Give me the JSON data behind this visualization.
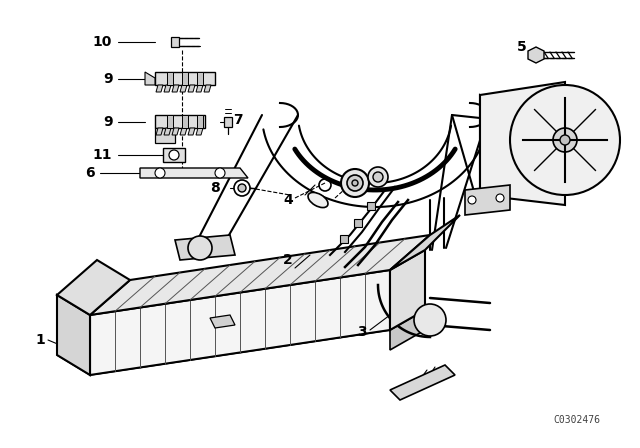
{
  "background_color": "#ffffff",
  "line_color": "#000000",
  "part_number_text": "C0302476",
  "figsize": [
    6.4,
    4.48
  ],
  "dpi": 100
}
